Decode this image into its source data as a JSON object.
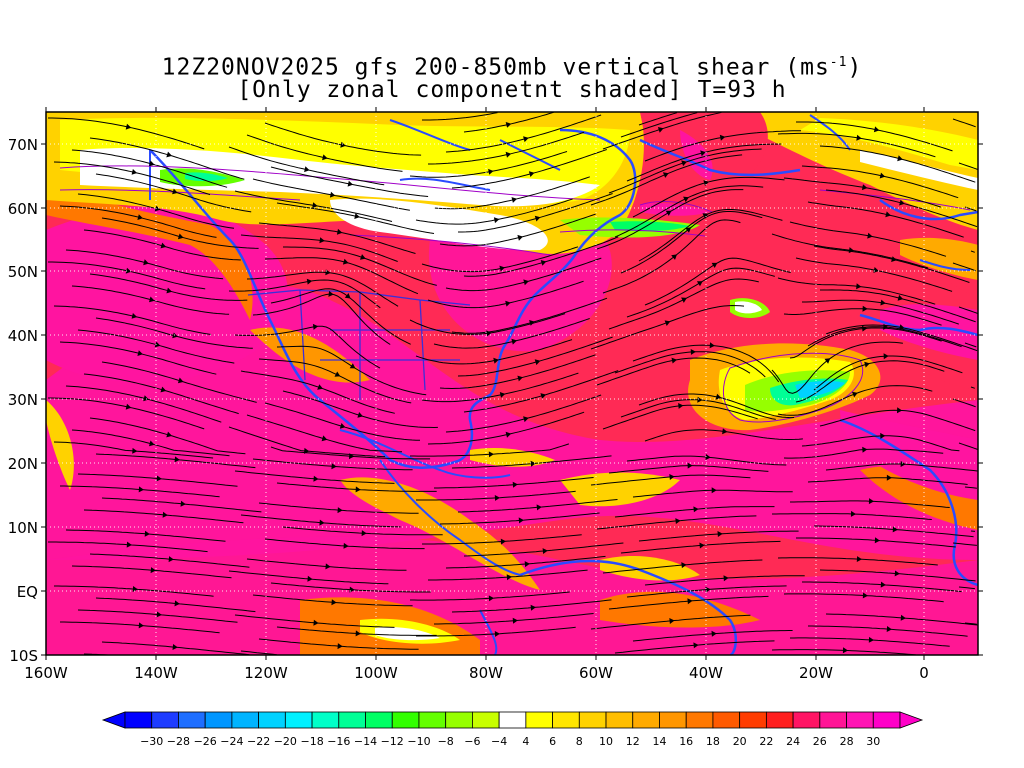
{
  "title": {
    "line1": "12Z20NOV2025 gfs 200-850mb vertical shear (ms",
    "line1_sup": "-1",
    "line1_end": ")",
    "line2": "[Only zonal componetnt shaded] T=93 h"
  },
  "lat_labels": [
    "70N",
    "60N",
    "50N",
    "40N",
    "30N",
    "20N",
    "10N",
    "EQ",
    "10S"
  ],
  "lon_labels": [
    "160W",
    "140W",
    "120W",
    "100W",
    "80W",
    "60W",
    "40W",
    "20W",
    "0"
  ],
  "colorbar": {
    "ticks": [
      "-30",
      "-28",
      "-26",
      "-24",
      "-22",
      "-20",
      "-18",
      "-16",
      "-14",
      "-12",
      "-10",
      "-8",
      "-6",
      "-4",
      "4",
      "6",
      "8",
      "10",
      "12",
      "14",
      "16",
      "18",
      "20",
      "22",
      "24",
      "26",
      "28",
      "30"
    ],
    "colors": [
      "#0000ff",
      "#1e3cff",
      "#1e6eff",
      "#0096ff",
      "#00b4ff",
      "#00d2ff",
      "#00f0ff",
      "#00ffc8",
      "#00ff96",
      "#00ff64",
      "#32ff00",
      "#64ff00",
      "#96ff00",
      "#c8ff00",
      "#ffffff",
      "#ffff00",
      "#ffe600",
      "#ffd200",
      "#ffbe00",
      "#ffaa00",
      "#ff9600",
      "#ff7800",
      "#ff5a00",
      "#ff3c00",
      "#ff1e1e",
      "#ff1464",
      "#ff1496",
      "#ff14b4",
      "#ff00c8"
    ]
  },
  "colors": {
    "coast": "#2a4bff",
    "state_border": "#3b2fd9",
    "contour": "#a000c8",
    "stream": "#000000"
  }
}
